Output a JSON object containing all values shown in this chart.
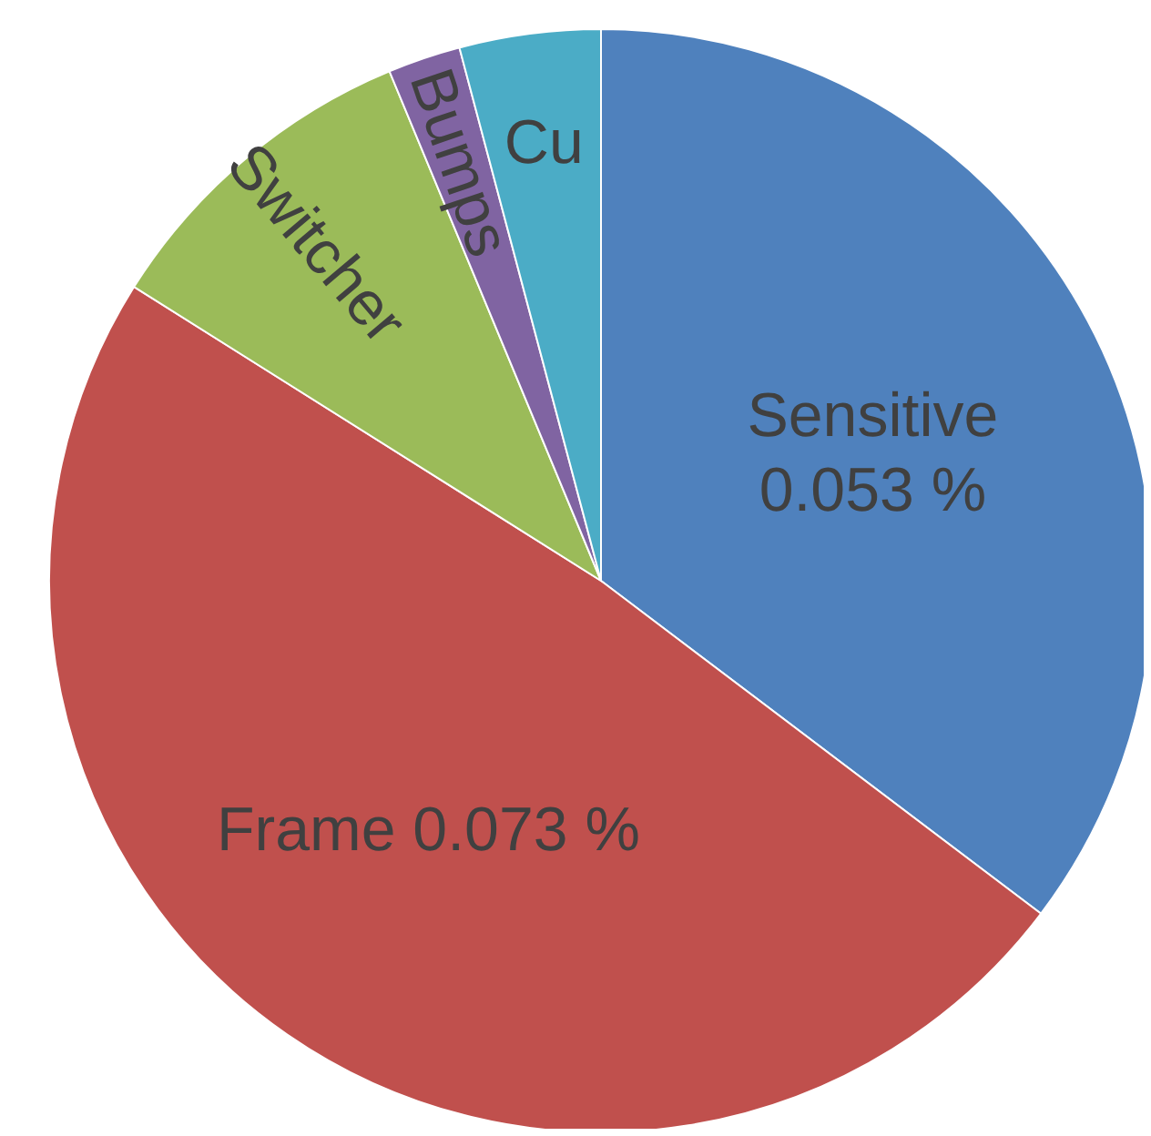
{
  "chart_data": {
    "type": "pie",
    "categories": [
      "Sensitive",
      "Frame",
      "Switcher",
      "Bumps",
      "Cu"
    ],
    "values": [
      0.053,
      0.073,
      0.0147,
      0.0032,
      0.0062
    ],
    "value_labels": [
      "0.053 %",
      "0.073 %",
      null,
      null,
      null
    ],
    "colors": [
      "#4f81bd",
      "#c0504d",
      "#9bbb59",
      "#8064a2",
      "#4bacc6"
    ]
  }
}
